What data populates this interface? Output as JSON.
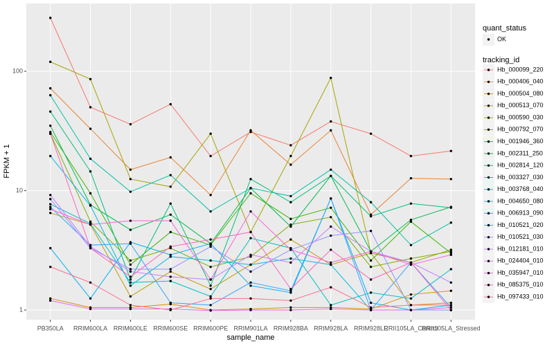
{
  "chart_data": {
    "type": "line",
    "log_scale": true,
    "grid": true,
    "x_label": "sample_name",
    "y_label": "FPKM + 1",
    "categories": [
      "PB350LA",
      "RRIM600LA",
      "RRIM600LE",
      "RRIM600SE",
      "RRIM600PE",
      "RRIM901LA",
      "RRIM928BA",
      "RRIM928LA",
      "RRIM928LE",
      "RRII105LA_Control",
      "RRII105LA_Stressed"
    ],
    "ylim": [
      0.83,
      370
    ],
    "yticks": [
      1,
      10,
      100
    ],
    "shape_legend": {
      "title": "quant_status",
      "labels": [
        "OK"
      ]
    },
    "legend_title": "tracking_id",
    "series": [
      {
        "name": "Hb_000099_220",
        "color": "#F8766D",
        "values": [
          280,
          50,
          36,
          53,
          19.5,
          31,
          24,
          38,
          30,
          19.5,
          21.5
        ]
      },
      {
        "name": "Hb_000406_040",
        "color": "#EA8331",
        "values": [
          72,
          33,
          15,
          19,
          9.2,
          32,
          16.5,
          32,
          6.3,
          12.7,
          12.5
        ]
      },
      {
        "name": "Hb_000504_080",
        "color": "#D89000",
        "values": [
          1.25,
          1.05,
          1.05,
          1.12,
          1.0,
          1.02,
          1.05,
          1.05,
          1.02,
          1.35,
          1.45
        ]
      },
      {
        "name": "Hb_000513_070",
        "color": "#C09B00",
        "values": [
          6.5,
          5.2,
          1.3,
          2.1,
          1.5,
          2.4,
          3.9,
          2.4,
          3.0,
          1.1,
          1.15
        ]
      },
      {
        "name": "Hb_000590_030",
        "color": "#A3A500",
        "values": [
          120,
          86,
          12.5,
          10.8,
          30,
          4.5,
          19.5,
          88,
          3.0,
          2.5,
          3.2
        ]
      },
      {
        "name": "Hb_000792_070",
        "color": "#7CAE00",
        "values": [
          30,
          5.5,
          2.6,
          3.3,
          2.3,
          2.8,
          5.2,
          6.0,
          2.3,
          2.7,
          3.1
        ]
      },
      {
        "name": "Hb_001946_360",
        "color": "#39B600",
        "values": [
          31,
          9.5,
          2.4,
          4.5,
          3.5,
          9.5,
          5.8,
          7.2,
          2.6,
          5.5,
          3.0
        ]
      },
      {
        "name": "Hb_002311_250",
        "color": "#00BB4E",
        "values": [
          35,
          7.6,
          4.7,
          6.3,
          3.6,
          10.5,
          5.0,
          13.3,
          3.1,
          5.7,
          7.3
        ]
      },
      {
        "name": "Hb_002814_120",
        "color": "#00BF7D",
        "values": [
          46,
          14.5,
          1.8,
          7.8,
          1.6,
          12.5,
          8.0,
          13.3,
          6.1,
          7.8,
          7.2
        ]
      },
      {
        "name": "Hb_003327_030",
        "color": "#00C1A3",
        "values": [
          63,
          18.5,
          9.8,
          13.5,
          6.7,
          10.5,
          9.0,
          15,
          8.0,
          3.5,
          5.4
        ]
      },
      {
        "name": "Hb_003768_040",
        "color": "#00BFC4",
        "values": [
          7.7,
          5.3,
          1.7,
          1.75,
          1.3,
          4.0,
          3.3,
          1.1,
          1.4,
          1.25,
          2.2
        ]
      },
      {
        "name": "Hb_004650_080",
        "color": "#00BAE0",
        "values": [
          19.5,
          7.5,
          1.6,
          2.8,
          2.6,
          2.4,
          2.7,
          2.4,
          1.0,
          1.0,
          1.1
        ]
      },
      {
        "name": "Hb_006913_090",
        "color": "#00B0F6",
        "values": [
          3.3,
          1.25,
          3.7,
          2.9,
          3.6,
          1.6,
          1.4,
          8.6,
          1.15,
          1.0,
          1.0
        ]
      },
      {
        "name": "Hb_010521_020",
        "color": "#35A2FF",
        "values": [
          7.3,
          3.5,
          3.6,
          1.15,
          1.1,
          1.7,
          1.45,
          8.6,
          1.0,
          2.5,
          1.05
        ]
      },
      {
        "name": "Hb_010521_030",
        "color": "#9590FF",
        "values": [
          8.5,
          3.3,
          2.2,
          2.2,
          3.4,
          2.1,
          3.2,
          4.2,
          4.6,
          1.0,
          1.0
        ]
      },
      {
        "name": "Hb_012181_010",
        "color": "#C77CFF",
        "values": [
          9.2,
          3.4,
          2.1,
          1.9,
          1.8,
          2.9,
          2.5,
          5.0,
          3.1,
          2.5,
          1.7
        ]
      },
      {
        "name": "Hb_024404_010",
        "color": "#E76BF3",
        "values": [
          1.2,
          1.02,
          1.02,
          1.02,
          0.99,
          1.0,
          1.0,
          1.02,
          1.0,
          1.0,
          1.05
        ]
      },
      {
        "name": "Hb_035947_010",
        "color": "#FA62DB",
        "values": [
          7.0,
          5.2,
          5.6,
          5.6,
          1.8,
          6.7,
          3.2,
          2.5,
          3.1,
          2.4,
          2.9
        ]
      },
      {
        "name": "Hb_085375_010",
        "color": "#FF62BC",
        "values": [
          30,
          3.3,
          1.9,
          3.4,
          3.9,
          4.5,
          1.5,
          3.2,
          1.8,
          2.5,
          1.0
        ]
      },
      {
        "name": "Hb_097433_010",
        "color": "#FF6C91",
        "values": [
          2.3,
          1.7,
          1.1,
          1.0,
          1.25,
          1.25,
          1.2,
          1.55,
          1.05,
          1.1,
          1.1
        ]
      }
    ]
  }
}
